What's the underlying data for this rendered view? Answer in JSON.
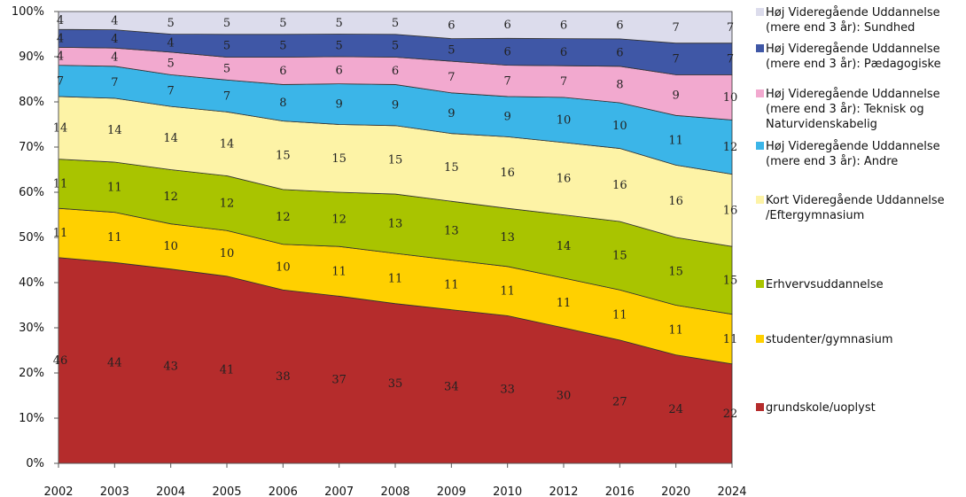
{
  "chart_data": {
    "type": "area",
    "stacked": true,
    "percent": true,
    "categories": [
      "2002",
      "2003",
      "2004",
      "2005",
      "2006",
      "2007",
      "2008",
      "2009",
      "2010",
      "2012",
      "2016",
      "2020",
      "2024"
    ],
    "ylim": [
      0,
      100
    ],
    "yticks": [
      "0%",
      "10%",
      "20%",
      "30%",
      "40%",
      "50%",
      "60%",
      "70%",
      "80%",
      "90%",
      "100%"
    ],
    "legend_position": "right",
    "grid": false,
    "series": [
      {
        "name": "grundskole/uoplyst",
        "color": "#b52c2c",
        "values": [
          46,
          44,
          43,
          41,
          38,
          37,
          35,
          34,
          33,
          30,
          27,
          24,
          22
        ]
      },
      {
        "name": "studenter/gymnasium",
        "color": "#ffd000",
        "values": [
          11,
          11,
          10,
          10,
          10,
          11,
          11,
          11,
          11,
          11,
          11,
          11,
          11
        ]
      },
      {
        "name": "Erhvervsuddannelse",
        "color": "#a9c400",
        "values": [
          11,
          11,
          12,
          12,
          12,
          12,
          13,
          13,
          13,
          14,
          15,
          15,
          15
        ]
      },
      {
        "name": "Kort Videregående Uddannelse /Eftergymnasium",
        "color": "#fdf3a6",
        "values": [
          14,
          14,
          14,
          14,
          15,
          15,
          15,
          15,
          16,
          16,
          16,
          16,
          16
        ]
      },
      {
        "name": "Høj Videregående Uddannelse (mere end 3 år): Andre",
        "color": "#3bb5e8",
        "values": [
          7,
          7,
          7,
          7,
          8,
          9,
          9,
          9,
          9,
          10,
          10,
          11,
          12
        ]
      },
      {
        "name": "Høj Videregående Uddannelse (mere end 3 år): Teknisk og Naturvidenskabelig",
        "color": "#f2a9cf",
        "values": [
          4,
          4,
          5,
          5,
          6,
          6,
          6,
          7,
          7,
          7,
          8,
          9,
          10
        ]
      },
      {
        "name": "Høj Videregående Uddannelse (mere end 3 år): Pædagogiske",
        "color": "#3f57a6",
        "values": [
          4,
          4,
          4,
          5,
          5,
          5,
          5,
          5,
          6,
          6,
          6,
          7,
          7
        ]
      },
      {
        "name": "Høj Videregående Uddannelse (mere end 3 år): Sundhed",
        "color": "#dcdcec",
        "values": [
          4,
          4,
          5,
          5,
          5,
          5,
          5,
          6,
          6,
          6,
          6,
          7,
          7
        ]
      }
    ],
    "legend": [
      {
        "series": 7,
        "lines": [
          "Høj Videregående Uddannelse",
          "(mere end 3 år): Sundhed"
        ]
      },
      {
        "series": 6,
        "lines": [
          "Høj Videregående Uddannelse",
          "(mere end 3 år): Pædagogiske"
        ]
      },
      {
        "series": 5,
        "lines": [
          "Høj Videregående Uddannelse",
          "(mere end 3 år): Teknisk og",
          "Naturvidenskabelig"
        ]
      },
      {
        "series": 4,
        "lines": [
          "Høj Videregående Uddannelse",
          "(mere end 3 år): Andre"
        ]
      },
      {
        "series": 3,
        "lines": [
          "Kort Videregående Uddannelse",
          "/Eftergymnasium"
        ]
      },
      {
        "series": 2,
        "lines": [
          "Erhvervsuddannelse"
        ]
      },
      {
        "series": 1,
        "lines": [
          "studenter/gymnasium"
        ]
      },
      {
        "series": 0,
        "lines": [
          "grundskole/uoplyst"
        ]
      }
    ]
  }
}
